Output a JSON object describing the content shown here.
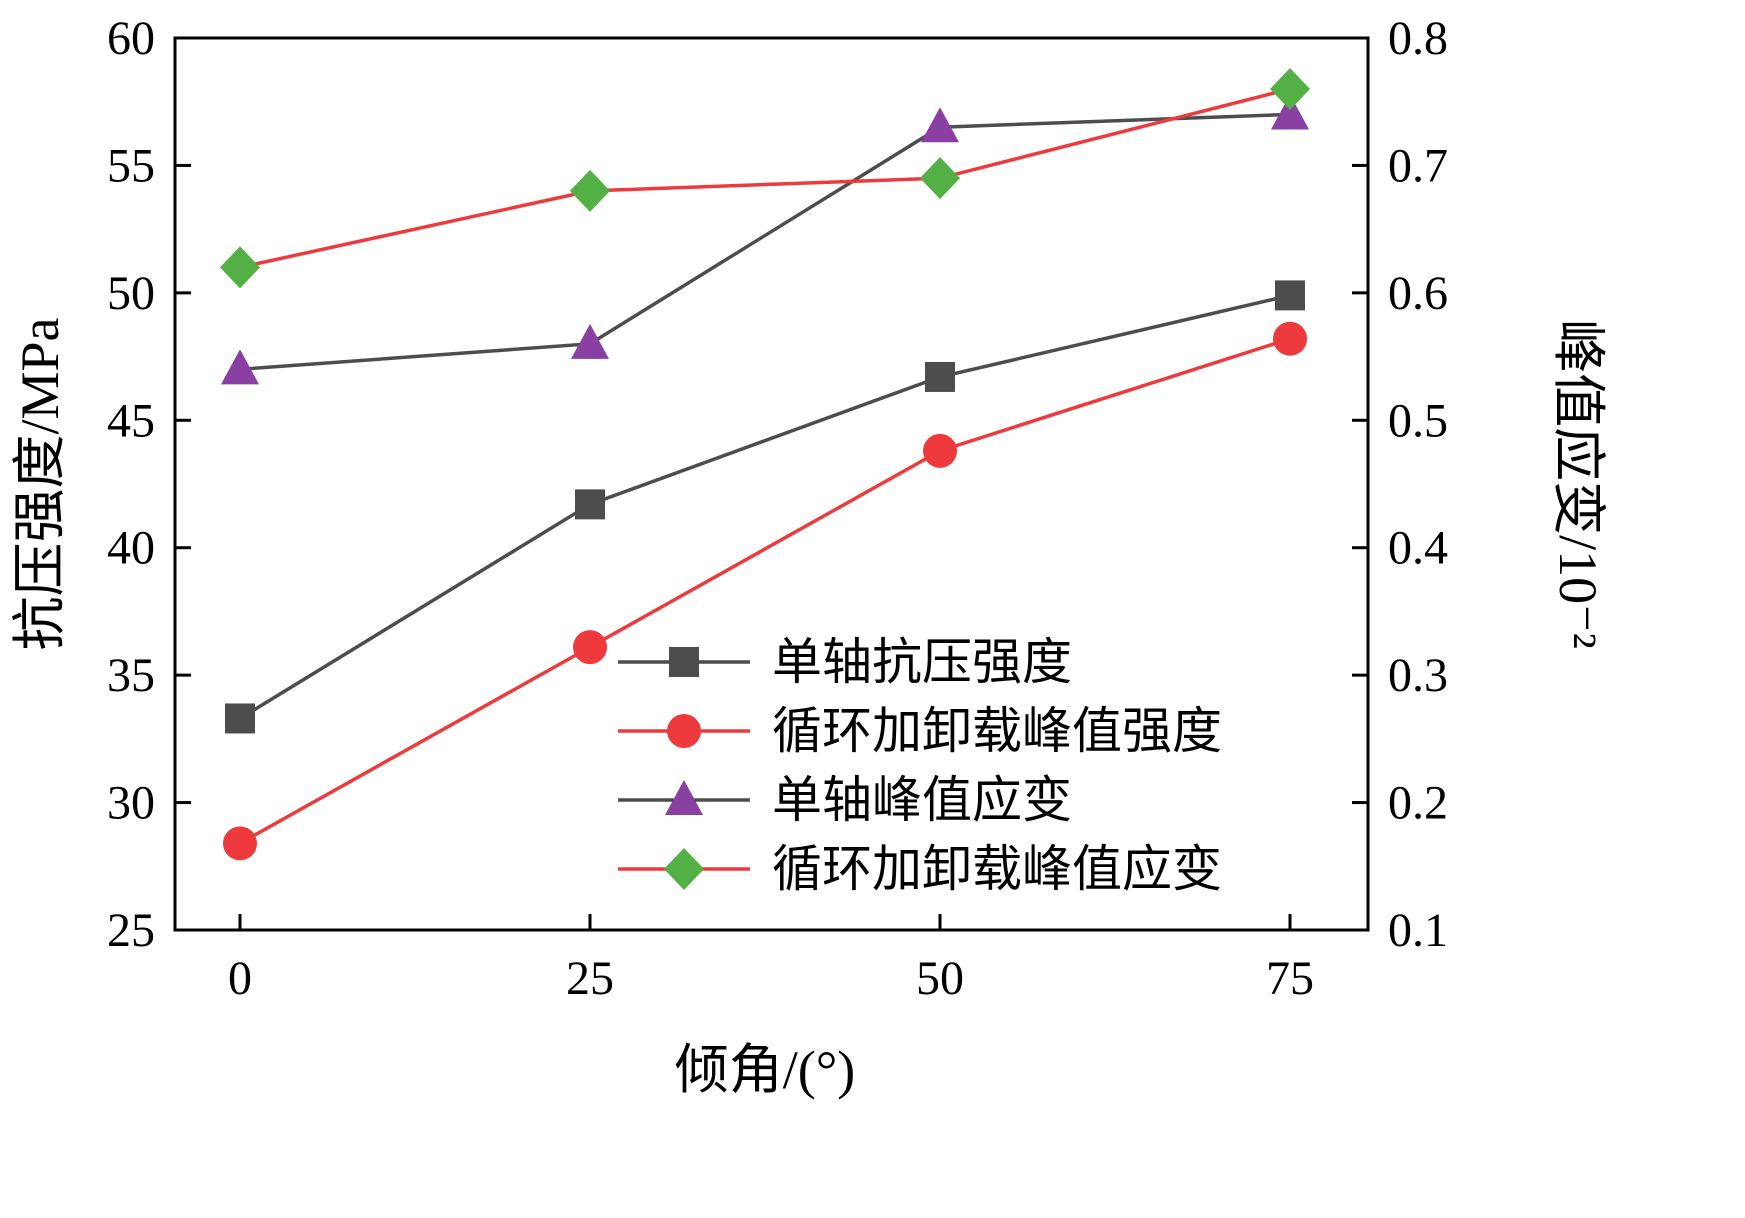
{
  "chart_data": {
    "type": "line",
    "x": [
      0,
      25,
      50,
      75
    ],
    "xticks": [
      0,
      25,
      50,
      75
    ],
    "xlabel": "倾角/(°)",
    "left_axis": {
      "label": "抗压强度/MPa",
      "lim": [
        25,
        60
      ],
      "ticks": [
        25,
        30,
        35,
        40,
        45,
        50,
        55,
        60
      ]
    },
    "right_axis": {
      "label": "峰值应变/10⁻²",
      "lim": [
        0.1,
        0.8
      ],
      "ticks": [
        0.1,
        0.2,
        0.3,
        0.4,
        0.5,
        0.6,
        0.7,
        0.8
      ]
    },
    "series": [
      {
        "name": "单轴抗压强度",
        "axis": "left",
        "values": [
          33.3,
          41.7,
          46.7,
          49.9
        ],
        "marker": "square",
        "marker_color": "#4d4d4d",
        "line_color": "#4d4d4d"
      },
      {
        "name": "循环加卸载峰值强度",
        "axis": "left",
        "values": [
          28.4,
          36.1,
          43.8,
          48.2
        ],
        "marker": "circle",
        "marker_color": "#ee3a3c",
        "line_color": "#ee3a3c"
      },
      {
        "name": "单轴峰值应变",
        "axis": "right",
        "values": [
          0.54,
          0.56,
          0.73,
          0.74
        ],
        "marker": "triangle",
        "marker_color": "#8a3fa3",
        "line_color": "#4d4d4d"
      },
      {
        "name": "循环加卸载峰值应变",
        "axis": "right",
        "values": [
          0.62,
          0.68,
          0.69,
          0.76
        ],
        "marker": "diamond",
        "marker_color": "#53b045",
        "line_color": "#ee3a3c"
      }
    ],
    "legend_position": "inside lower-center",
    "grid": false,
    "colors": {
      "axis": "#000000",
      "dark_line": "#4d4d4d",
      "red_line": "#ee3a3c",
      "purple_marker": "#8a3fa3",
      "green_marker": "#53b045"
    }
  }
}
